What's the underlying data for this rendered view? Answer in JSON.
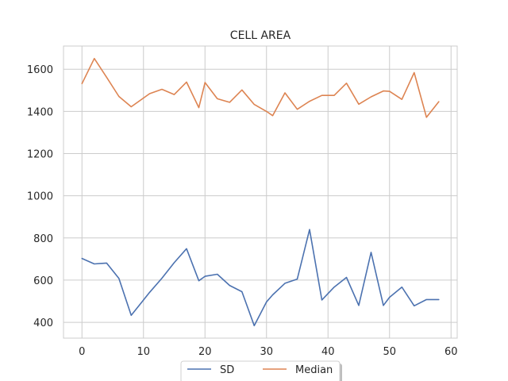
{
  "chart_data": {
    "type": "line",
    "title": "CELL AREA",
    "xlabel": "",
    "ylabel": "",
    "xlim": [
      -3,
      61
    ],
    "ylim": [
      325,
      1710
    ],
    "x_ticks": [
      0,
      10,
      20,
      30,
      40,
      50,
      60
    ],
    "y_ticks": [
      400,
      600,
      800,
      1000,
      1200,
      1400,
      1600
    ],
    "grid": true,
    "legend_position": "bottom-center",
    "x": [
      0,
      2,
      4,
      6,
      8,
      11,
      13,
      15,
      17,
      19,
      20,
      22,
      24,
      26,
      28,
      30,
      31,
      33,
      35,
      37,
      39,
      41,
      43,
      45,
      47,
      49,
      50,
      52,
      54,
      56,
      58
    ],
    "series": [
      {
        "name": "SD",
        "color": "#4c72b0",
        "values": [
          703,
          677,
          681,
          608,
          433,
          542,
          609,
          683,
          749,
          597,
          618,
          628,
          575,
          545,
          384,
          497,
          530,
          585,
          605,
          840,
          506,
          567,
          613,
          480,
          732,
          480,
          519,
          567,
          478,
          508,
          508
        ]
      },
      {
        "name": "Median",
        "color": "#dd8452",
        "values": [
          1532,
          1651,
          1562,
          1471,
          1422,
          1484,
          1505,
          1480,
          1539,
          1418,
          1537,
          1460,
          1443,
          1502,
          1433,
          1400,
          1380,
          1488,
          1410,
          1448,
          1476,
          1476,
          1534,
          1434,
          1469,
          1497,
          1495,
          1457,
          1584,
          1372,
          1446
        ]
      }
    ]
  }
}
